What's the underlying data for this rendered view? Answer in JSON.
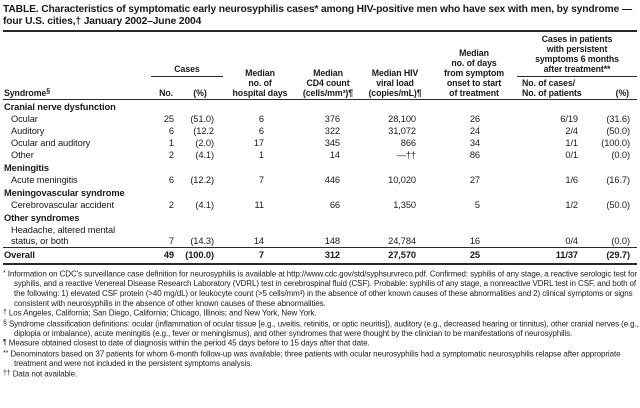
{
  "title": "TABLE. Characteristics of symptomatic early neurosyphilis cases* among HIV-positive men who have sex with men, by syndrome —\nfour U.S. cities,† January 2002–June 2004",
  "table": {
    "header": {
      "syndrome": "Syndrome",
      "syndrome_sup": "§",
      "cases_group": "Cases",
      "no": "No.",
      "pct": "(%)",
      "hospital_days": "Median\nno. of\nhospital days",
      "cd4": "Median\nCD4 count\n(cells/mm³)¶",
      "viral_load": "Median HIV\nviral load\n(copies/mL)¶",
      "onset": "Median\nno. of days\nfrom symptom\nonset to start\nof treatment",
      "persistent_group": "Cases in patients\nwith persistent\nsymptoms 6 months\nafter treatment**",
      "cases_patients": "No. of cases/\nNo. of patients",
      "persistent_pct": "(%)"
    },
    "rows": [
      {
        "type": "section",
        "label": "Cranial nerve dysfunction"
      },
      {
        "type": "data",
        "label": "Ocular",
        "cells": [
          "25",
          "(51.0)",
          "6",
          "376",
          "28,100",
          "26",
          "6/19",
          "(31.6)"
        ]
      },
      {
        "type": "data",
        "label": "Auditory",
        "cells": [
          "6",
          "(12.2",
          "6",
          "322",
          "31,072",
          "24",
          "2/4",
          "(50.0)"
        ]
      },
      {
        "type": "data",
        "label": "Ocular and auditory",
        "cells": [
          "1",
          "(2.0)",
          "17",
          "345",
          "866",
          "34",
          "1/1",
          "(100.0)"
        ]
      },
      {
        "type": "data",
        "label": "Other",
        "cells": [
          "2",
          "(4.1)",
          "1",
          "14",
          "—††",
          "86",
          "0/1",
          "(0.0)"
        ]
      },
      {
        "type": "section",
        "label": "Meningitis"
      },
      {
        "type": "data",
        "label": "Acute meningitis",
        "cells": [
          "6",
          "(12.2)",
          "7",
          "446",
          "10,020",
          "27",
          "1/6",
          "(16.7)"
        ]
      },
      {
        "type": "section",
        "label": "Meningovascular syndrome"
      },
      {
        "type": "data",
        "label": "Cerebrovascular accident",
        "cells": [
          "2",
          "(4.1)",
          "11",
          "66",
          "1,350",
          "5",
          "1/2",
          "(50.0)"
        ]
      },
      {
        "type": "section",
        "label": "Other syndromes"
      },
      {
        "type": "data",
        "label": "Headache, altered mental\nstatus, or both",
        "cells": [
          "7",
          "(14.3)",
          "14",
          "148",
          "24,784",
          "16",
          "0/4",
          "(0.0)"
        ]
      },
      {
        "type": "overall",
        "label": "Overall",
        "cells": [
          "49",
          "(100.0)",
          "7",
          "312",
          "27,570",
          "25",
          "11/37",
          "(29.7)"
        ]
      }
    ]
  },
  "footnotes": [
    {
      "marker": "*",
      "text": "Information on CDC's surveillance case definition for neurosyphilis is available at http://www.cdc.gov/std/syphsurvreco.pdf. Confirmed: syphilis of any stage, a reactive serologic test for syphilis, and a reactive Venereal Disease Research Laboratory (VDRL) test in cerebrospinal fluid (CSF). Probable: syphilis of any stage, a nonreactive VDRL test in CSF, and both of the following: 1) elevated CSF protein (>40 mg/dL) or leukocyte count (>5 cells/mm³) in the absence of other known causes of these abnormalities and 2) clinical symptoms or signs consistent with neurosyphilis in the absence of other known causes of these abnormalities."
    },
    {
      "marker": "†",
      "text": "Los Angeles, California; San Diego, California; Chicago, Illinois; and New York, New York."
    },
    {
      "marker": "§",
      "text": "Syndrome classification definitions: ocular (inflammation of ocular tissue [e.g., uveitis, retinitis, or optic neuritis]), auditory (e.g., decreased hearing or tinnitus), other cranial nerves (e.g., diplopia or imbalance), acute meningitis (e.g., fever or meningismus), and other syndromes that were thought by the clinician to be manifestations of neurosyphilis."
    },
    {
      "marker": "¶",
      "text": "Measure obtained closest to date of diagnosis within the period 45 days before to 15 days after that date."
    },
    {
      "marker": "**",
      "text": "Denominators based on 37 patients for whom 6-month follow-up was available; three patients with ocular neurosyphilis had a symptomatic neurosyphilis relapse after appropriate treatment and were not included in the persistent symptoms analysis."
    },
    {
      "marker": "††",
      "text": "Data not available."
    }
  ]
}
